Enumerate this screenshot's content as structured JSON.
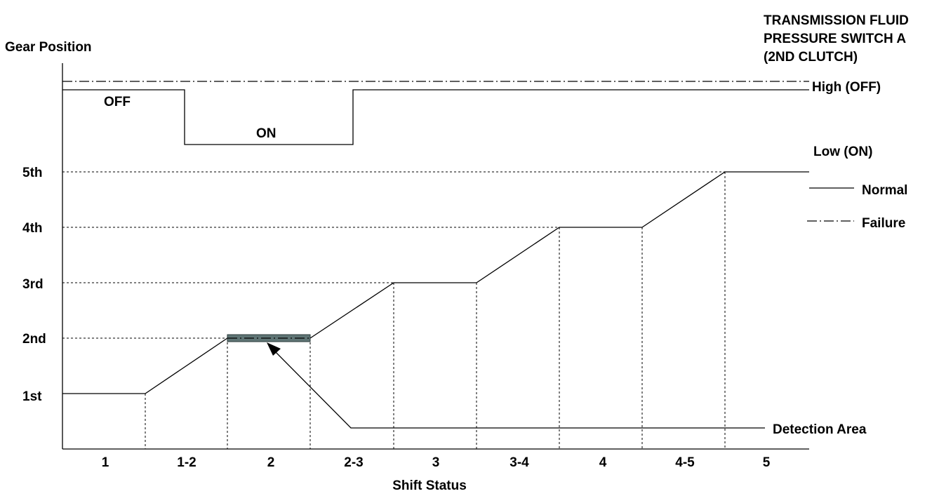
{
  "title": {
    "line1": "TRANSMISSION FLUID",
    "line2": "PRESSURE SWITCH A",
    "line3": "(2ND CLUTCH)"
  },
  "y_axis_label": "Gear Position",
  "x_axis_label": "Shift Status",
  "switch_states": {
    "high": "High (OFF)",
    "low": "Low (ON)",
    "off_label": "OFF",
    "on_label": "ON"
  },
  "gears": [
    "1st",
    "2nd",
    "3rd",
    "4th",
    "5th"
  ],
  "shift_status": [
    "1",
    "1-2",
    "2",
    "2-3",
    "3",
    "3-4",
    "4",
    "4-5",
    "5"
  ],
  "legend": {
    "normal": "Normal",
    "failure": "Failure"
  },
  "detection_area_label": "Detection Area",
  "colors": {
    "line": "#000000",
    "detection_bar": "#5f7575"
  }
}
